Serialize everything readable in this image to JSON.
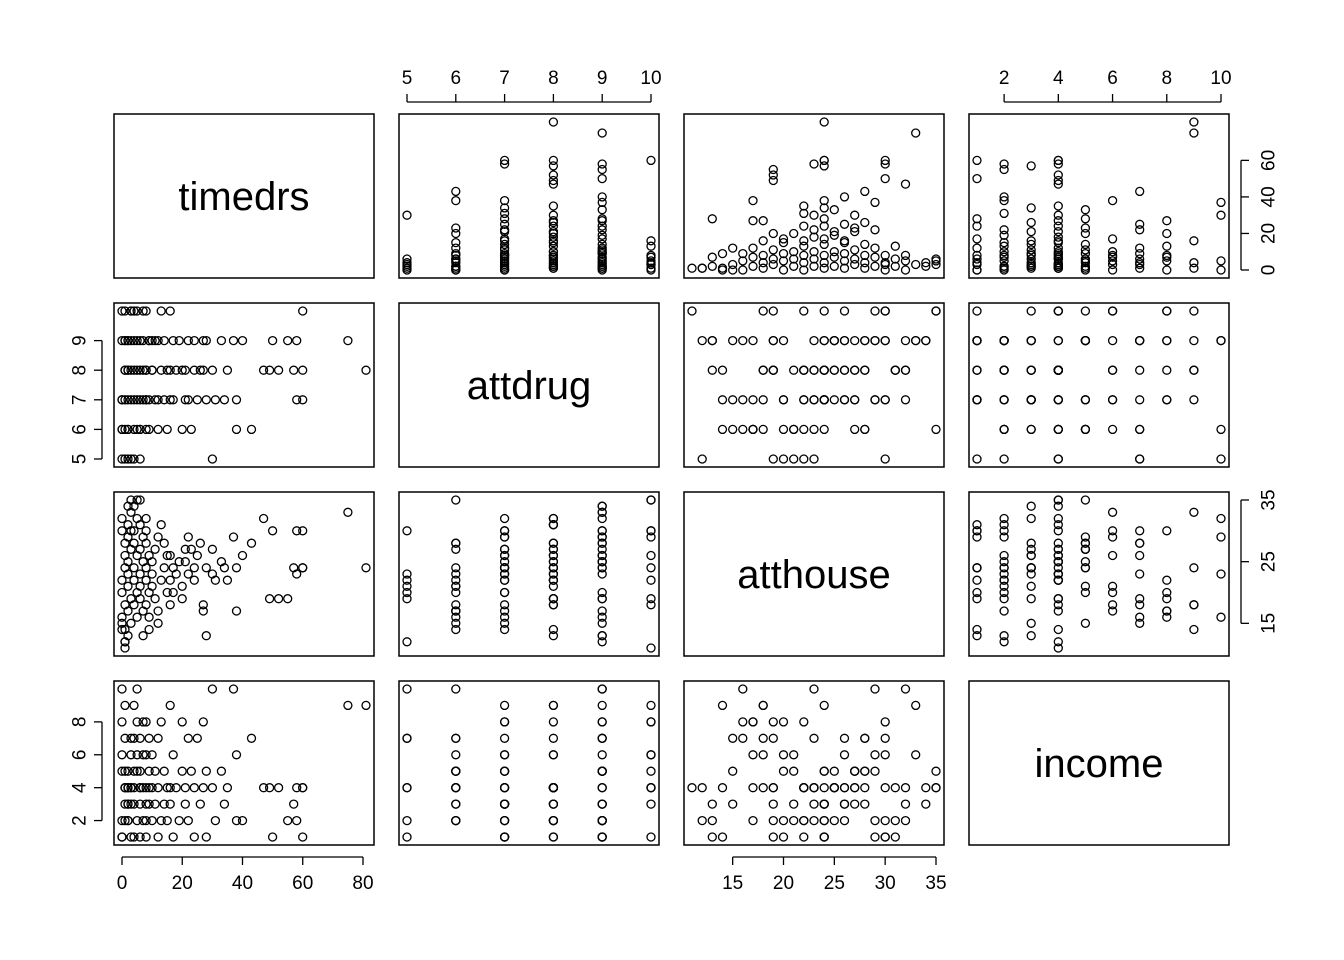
{
  "chart_data": {
    "type": "scatter",
    "variables": [
      "timedrs",
      "attdrug",
      "atthouse",
      "income"
    ],
    "axes": {
      "timedrs": {
        "range": [
          0,
          81
        ],
        "ticks": [
          0,
          20,
          40,
          60,
          80
        ],
        "tick_labels": [
          "0",
          "20",
          "40",
          "60",
          "80"
        ]
      },
      "attdrug": {
        "range": [
          5,
          10
        ],
        "ticks": [
          5,
          6,
          7,
          8,
          9,
          10
        ],
        "tick_labels": [
          "5",
          "6",
          "7",
          "8",
          "9",
          "10"
        ],
        "left_tick_labels": [
          "5",
          "6",
          "7",
          "8",
          "9"
        ]
      },
      "atthouse": {
        "range": [
          11,
          35
        ],
        "ticks": [
          15,
          20,
          25,
          30,
          35
        ],
        "tick_labels": [
          "15",
          "20",
          "25",
          "30",
          "35"
        ],
        "right_ticks": [
          15,
          25,
          35
        ],
        "right_tick_labels": [
          "15",
          "25",
          "35"
        ]
      },
      "income": {
        "range": [
          1,
          10
        ],
        "ticks": [
          2,
          4,
          6,
          8,
          10
        ],
        "tick_labels": [
          "2",
          "4",
          "6",
          "8",
          "10"
        ],
        "left_tick_labels": [
          "2",
          "4",
          "6",
          "8"
        ]
      }
    },
    "timedrs_right_ticks": [
      0,
      20,
      40,
      60
    ],
    "timedrs_right_tick_labels": [
      "0",
      "20",
      "40",
      "60"
    ],
    "grid": false,
    "legend": "none",
    "marker": "open-circle",
    "observations": [
      [
        0,
        5,
        20,
        1
      ],
      [
        0,
        6,
        22,
        2
      ],
      [
        1,
        7,
        24,
        3
      ],
      [
        1,
        8,
        26,
        4
      ],
      [
        1,
        9,
        28,
        5
      ],
      [
        0,
        10,
        30,
        6
      ],
      [
        1,
        6,
        18,
        7
      ],
      [
        0,
        7,
        16,
        8
      ],
      [
        1,
        8,
        14,
        9
      ],
      [
        0,
        9,
        32,
        10
      ],
      [
        2,
        5,
        21,
        2
      ],
      [
        2,
        6,
        23,
        3
      ],
      [
        2,
        7,
        25,
        4
      ],
      [
        3,
        8,
        27,
        4
      ],
      [
        2,
        9,
        29,
        5
      ],
      [
        3,
        10,
        19,
        1
      ],
      [
        2,
        6,
        17,
        2
      ],
      [
        3,
        7,
        15,
        3
      ],
      [
        2,
        8,
        31,
        4
      ],
      [
        3,
        9,
        33,
        6
      ],
      [
        4,
        5,
        22,
        4
      ],
      [
        4,
        6,
        24,
        5
      ],
      [
        5,
        7,
        26,
        6
      ],
      [
        4,
        8,
        28,
        7
      ],
      [
        5,
        9,
        20,
        8
      ],
      [
        4,
        10,
        18,
        9
      ],
      [
        5,
        6,
        16,
        10
      ],
      [
        4,
        7,
        30,
        1
      ],
      [
        5,
        8,
        32,
        2
      ],
      [
        4,
        9,
        34,
        3
      ],
      [
        6,
        6,
        21,
        3
      ],
      [
        6,
        7,
        23,
        4
      ],
      [
        7,
        8,
        25,
        4
      ],
      [
        6,
        9,
        27,
        5
      ],
      [
        7,
        10,
        29,
        6
      ],
      [
        6,
        5,
        19,
        7
      ],
      [
        7,
        7,
        17,
        8
      ],
      [
        6,
        8,
        31,
        1
      ],
      [
        7,
        9,
        13,
        2
      ],
      [
        6,
        6,
        35,
        4
      ],
      [
        8,
        7,
        22,
        1
      ],
      [
        8,
        8,
        24,
        2
      ],
      [
        9,
        9,
        26,
        3
      ],
      [
        8,
        6,
        28,
        4
      ],
      [
        9,
        7,
        20,
        5
      ],
      [
        8,
        8,
        18,
        6
      ],
      [
        9,
        9,
        16,
        7
      ],
      [
        8,
        10,
        30,
        8
      ],
      [
        9,
        6,
        14,
        4
      ],
      [
        8,
        7,
        32,
        3
      ],
      [
        10,
        8,
        23,
        2
      ],
      [
        10,
        9,
        25,
        4
      ],
      [
        11,
        7,
        27,
        5
      ],
      [
        10,
        8,
        21,
        6
      ],
      [
        11,
        9,
        19,
        3
      ],
      [
        12,
        6,
        17,
        4
      ],
      [
        12,
        7,
        29,
        1
      ],
      [
        13,
        8,
        31,
        2
      ],
      [
        12,
        9,
        15,
        7
      ],
      [
        13,
        10,
        22,
        8
      ],
      [
        14,
        7,
        24,
        3
      ],
      [
        15,
        8,
        26,
        4
      ],
      [
        14,
        9,
        28,
        5
      ],
      [
        15,
        6,
        20,
        2
      ],
      [
        16,
        7,
        18,
        9
      ],
      [
        16,
        8,
        22,
        4
      ],
      [
        17,
        9,
        24,
        1
      ],
      [
        16,
        10,
        26,
        3
      ],
      [
        17,
        7,
        20,
        6
      ],
      [
        18,
        8,
        23,
        4
      ],
      [
        19,
        9,
        25,
        2
      ],
      [
        20,
        6,
        21,
        5
      ],
      [
        21,
        7,
        27,
        3
      ],
      [
        20,
        8,
        19,
        8
      ],
      [
        22,
        9,
        23,
        7
      ],
      [
        21,
        8,
        25,
        4
      ],
      [
        22,
        7,
        29,
        2
      ],
      [
        23,
        6,
        27,
        5
      ],
      [
        24,
        9,
        24,
        1
      ],
      [
        24,
        8,
        22,
        4
      ],
      [
        25,
        7,
        26,
        7
      ],
      [
        26,
        8,
        28,
        3
      ],
      [
        27,
        9,
        17,
        8
      ],
      [
        27,
        8,
        18,
        4
      ],
      [
        28,
        7,
        24,
        5
      ],
      [
        28,
        9,
        13,
        1
      ],
      [
        30,
        5,
        23,
        10
      ],
      [
        30,
        8,
        27,
        4
      ],
      [
        31,
        7,
        22,
        2
      ],
      [
        33,
        9,
        25,
        5
      ],
      [
        34,
        7,
        24,
        3
      ],
      [
        35,
        8,
        22,
        4
      ],
      [
        37,
        9,
        29,
        10
      ],
      [
        38,
        7,
        24,
        2
      ],
      [
        38,
        6,
        17,
        6
      ],
      [
        40,
        9,
        26,
        2
      ],
      [
        43,
        6,
        28,
        7
      ],
      [
        47,
        8,
        32,
        4
      ],
      [
        49,
        8,
        19,
        4
      ],
      [
        50,
        9,
        30,
        1
      ],
      [
        52,
        8,
        19,
        4
      ],
      [
        55,
        9,
        19,
        2
      ],
      [
        57,
        8,
        24,
        3
      ],
      [
        58,
        7,
        23,
        4
      ],
      [
        58,
        9,
        30,
        2
      ],
      [
        60,
        7,
        30,
        4
      ],
      [
        60,
        8,
        24,
        1
      ],
      [
        60,
        10,
        24,
        4
      ],
      [
        75,
        9,
        33,
        9
      ],
      [
        81,
        8,
        24,
        9
      ],
      [
        1,
        5,
        12,
        4
      ],
      [
        2,
        9,
        34,
        4
      ],
      [
        1,
        10,
        11,
        4
      ],
      [
        3,
        10,
        35,
        4
      ],
      [
        0,
        7,
        14,
        1
      ],
      [
        2,
        8,
        13,
        3
      ],
      [
        1,
        9,
        12,
        2
      ],
      [
        0,
        6,
        15,
        5
      ],
      [
        5,
        10,
        35,
        5
      ],
      [
        3,
        5,
        30,
        7
      ]
    ]
  }
}
